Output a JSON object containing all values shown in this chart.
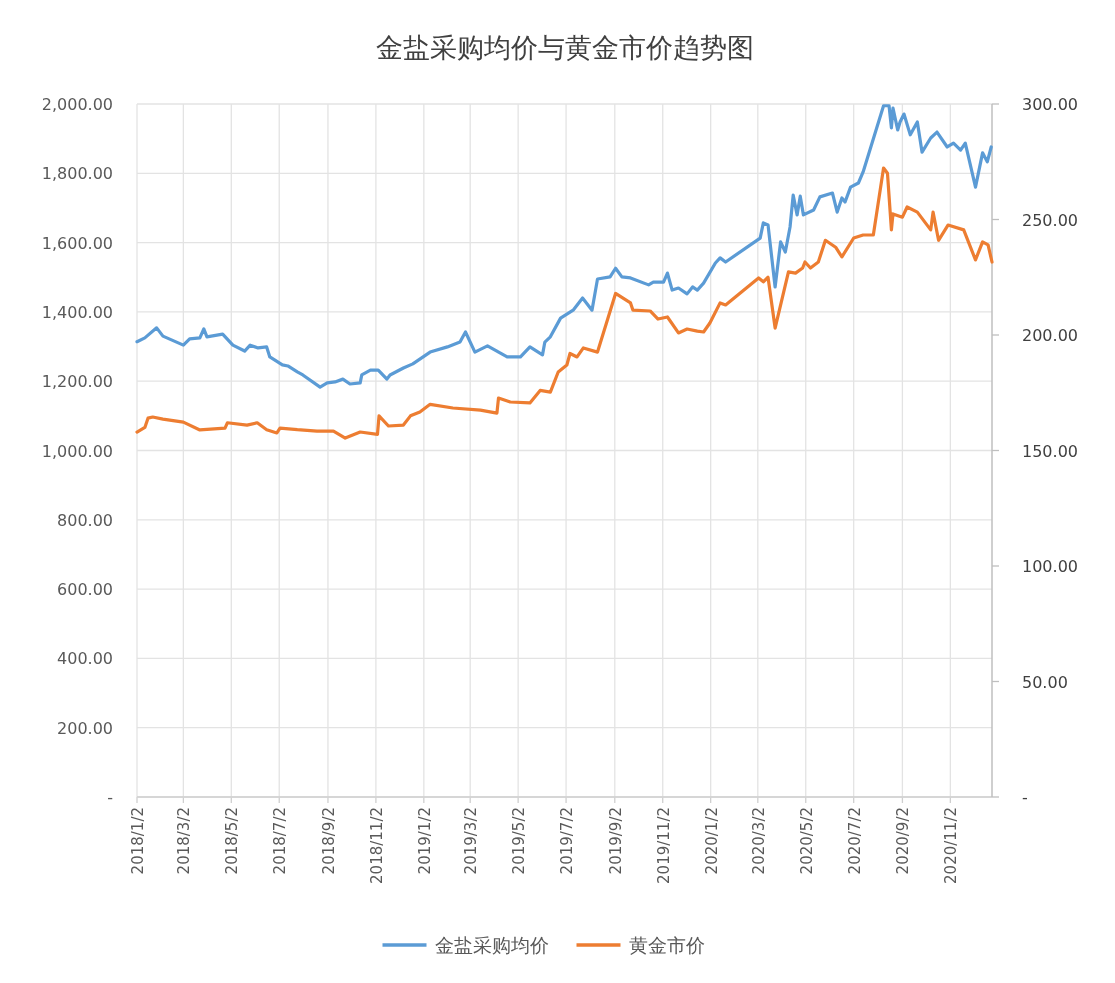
{
  "chart_data": {
    "type": "line",
    "title": "金盐采购均价与黄金市价趋势图",
    "xlim": [
      "2018-01-02",
      "2020-12-25"
    ],
    "xticks": [
      {
        "value": "2018-01-02",
        "label": "2018/1/2"
      },
      {
        "value": "2018-03-02",
        "label": "2018/3/2"
      },
      {
        "value": "2018-05-02",
        "label": "2018/5/2"
      },
      {
        "value": "2018-07-02",
        "label": "2018/7/2"
      },
      {
        "value": "2018-09-02",
        "label": "2018/9/2"
      },
      {
        "value": "2018-11-02",
        "label": "2018/11/2"
      },
      {
        "value": "2019-01-02",
        "label": "2019/1/2"
      },
      {
        "value": "2019-03-02",
        "label": "2019/3/2"
      },
      {
        "value": "2019-05-02",
        "label": "2019/5/2"
      },
      {
        "value": "2019-07-02",
        "label": "2019/7/2"
      },
      {
        "value": "2019-09-02",
        "label": "2019/9/2"
      },
      {
        "value": "2019-11-02",
        "label": "2019/11/2"
      },
      {
        "value": "2020-01-02",
        "label": "2020/1/2"
      },
      {
        "value": "2020-03-02",
        "label": "2020/3/2"
      },
      {
        "value": "2020-05-02",
        "label": "2020/5/2"
      },
      {
        "value": "2020-07-02",
        "label": "2020/7/2"
      },
      {
        "value": "2020-09-02",
        "label": "2020/9/2"
      },
      {
        "value": "2020-11-02",
        "label": "2020/11/2"
      }
    ],
    "ylim": [
      0,
      2000
    ],
    "yticks": [
      {
        "value": 0,
        "label": "-"
      },
      {
        "value": 200,
        "label": "200.00"
      },
      {
        "value": 400,
        "label": "400.00"
      },
      {
        "value": 600,
        "label": "600.00"
      },
      {
        "value": 800,
        "label": "800.00"
      },
      {
        "value": 1000,
        "label": "1,000.00"
      },
      {
        "value": 1200,
        "label": "1,200.00"
      },
      {
        "value": 1400,
        "label": "1,400.00"
      },
      {
        "value": 1600,
        "label": "1,600.00"
      },
      {
        "value": 1800,
        "label": "1,800.00"
      },
      {
        "value": 2000,
        "label": "2,000.00"
      }
    ],
    "y2lim": [
      0,
      300
    ],
    "y2ticks": [
      {
        "value": 0,
        "label": "-"
      },
      {
        "value": 50,
        "label": "50.00"
      },
      {
        "value": 100,
        "label": "100.00"
      },
      {
        "value": 150,
        "label": "150.00"
      },
      {
        "value": 200,
        "label": "200.00"
      },
      {
        "value": 250,
        "label": "250.00"
      },
      {
        "value": 300,
        "label": "300.00"
      }
    ],
    "grid": true,
    "legend": "bottom",
    "series": [
      {
        "name": "金盐采购均价",
        "color": "#5b9bd5",
        "axis": "y",
        "x": [
          "2018-01-02",
          "2018-01-12",
          "2018-01-27",
          "2018-02-04",
          "2018-03-02",
          "2018-03-10",
          "2018-03-23",
          "2018-03-28",
          "2018-04-01",
          "2018-04-21",
          "2018-05-04",
          "2018-05-19",
          "2018-05-26",
          "2018-06-05",
          "2018-06-16",
          "2018-06-20",
          "2018-07-06",
          "2018-07-13",
          "2018-07-25",
          "2018-08-01",
          "2018-08-23",
          "2018-09-01",
          "2018-09-11",
          "2018-09-21",
          "2018-09-30",
          "2018-10-13",
          "2018-10-15",
          "2018-10-26",
          "2018-11-05",
          "2018-11-16",
          "2018-11-20",
          "2018-12-07",
          "2018-12-19",
          "2019-01-10",
          "2019-02-01",
          "2019-02-17",
          "2019-02-24",
          "2019-03-08",
          "2019-03-24",
          "2019-04-18",
          "2019-05-05",
          "2019-05-17",
          "2019-06-02",
          "2019-06-05",
          "2019-06-12",
          "2019-06-25",
          "2019-07-11",
          "2019-07-23",
          "2019-08-04",
          "2019-08-11",
          "2019-08-27",
          "2019-09-03",
          "2019-09-11",
          "2019-09-22",
          "2019-10-15",
          "2019-10-21",
          "2019-11-03",
          "2019-11-08",
          "2019-11-14",
          "2019-11-22",
          "2019-12-03",
          "2019-12-10",
          "2019-12-16",
          "2019-12-24",
          "2020-01-08",
          "2020-01-14",
          "2020-01-21",
          "2020-03-05",
          "2020-03-09",
          "2020-03-15",
          "2020-03-24",
          "2020-03-31",
          "2020-04-06",
          "2020-04-12",
          "2020-04-16",
          "2020-04-21",
          "2020-04-25",
          "2020-04-29",
          "2020-05-12",
          "2020-05-20",
          "2020-06-05",
          "2020-06-11",
          "2020-06-17",
          "2020-06-21",
          "2020-06-28",
          "2020-07-08",
          "2020-07-14",
          "2020-08-09",
          "2020-08-16",
          "2020-08-19",
          "2020-08-21",
          "2020-08-27",
          "2020-08-30",
          "2020-09-04",
          "2020-09-12",
          "2020-09-21",
          "2020-09-27",
          "2020-10-08",
          "2020-10-16",
          "2020-10-29",
          "2020-11-06",
          "2020-11-15",
          "2020-11-21",
          "2020-12-04",
          "2020-12-13",
          "2020-12-19",
          "2020-12-24"
        ],
        "values": [
          1314,
          1325,
          1354,
          1330,
          1304,
          1322,
          1325,
          1351,
          1328,
          1336,
          1304,
          1287,
          1304,
          1296,
          1299,
          1270,
          1247,
          1244,
          1227,
          1218,
          1183,
          1195,
          1198,
          1206,
          1192,
          1195,
          1218,
          1232,
          1232,
          1206,
          1218,
          1238,
          1250,
          1284,
          1299,
          1313,
          1342,
          1284,
          1302,
          1270,
          1270,
          1299,
          1276,
          1313,
          1328,
          1382,
          1405,
          1440,
          1405,
          1495,
          1501,
          1526,
          1501,
          1498,
          1478,
          1486,
          1486,
          1512,
          1463,
          1469,
          1452,
          1472,
          1463,
          1483,
          1541,
          1556,
          1544,
          1613,
          1657,
          1651,
          1472,
          1602,
          1573,
          1645,
          1737,
          1680,
          1734,
          1680,
          1694,
          1732,
          1743,
          1688,
          1729,
          1717,
          1760,
          1772,
          1804,
          1995,
          1995,
          1931,
          1988,
          1925,
          1948,
          1971,
          1911,
          1948,
          1861,
          1902,
          1919,
          1876,
          1887,
          1867,
          1887,
          1760,
          1859,
          1833,
          1876
        ]
      },
      {
        "name": "黄金市价",
        "color": "#ed7d31",
        "axis": "y2",
        "x": [
          "2018-01-02",
          "2018-01-12",
          "2018-01-16",
          "2018-01-22",
          "2018-02-04",
          "2018-03-02",
          "2018-03-23",
          "2018-04-24",
          "2018-04-27",
          "2018-05-22",
          "2018-06-04",
          "2018-06-16",
          "2018-06-29",
          "2018-07-03",
          "2018-07-25",
          "2018-08-19",
          "2018-09-09",
          "2018-09-24",
          "2018-10-13",
          "2018-11-04",
          "2018-11-06",
          "2018-11-18",
          "2018-12-07",
          "2018-12-16",
          "2018-12-28",
          "2019-01-10",
          "2019-02-08",
          "2019-03-15",
          "2019-04-05",
          "2019-04-07",
          "2019-04-22",
          "2019-05-17",
          "2019-05-30",
          "2019-06-12",
          "2019-06-22",
          "2019-07-03",
          "2019-07-07",
          "2019-07-16",
          "2019-07-24",
          "2019-08-11",
          "2019-09-03",
          "2019-09-22",
          "2019-09-25",
          "2019-10-17",
          "2019-10-27",
          "2019-11-08",
          "2019-11-22",
          "2019-12-03",
          "2019-12-16",
          "2019-12-24",
          "2020-01-01",
          "2020-01-14",
          "2020-01-21",
          "2020-03-03",
          "2020-03-09",
          "2020-03-15",
          "2020-03-24",
          "2020-04-10",
          "2020-04-19",
          "2020-04-28",
          "2020-05-01",
          "2020-05-08",
          "2020-05-18",
          "2020-05-27",
          "2020-06-09",
          "2020-06-17",
          "2020-07-02",
          "2020-07-14",
          "2020-07-27",
          "2020-08-09",
          "2020-08-14",
          "2020-08-19",
          "2020-08-21",
          "2020-09-02",
          "2020-09-08",
          "2020-09-21",
          "2020-10-08",
          "2020-10-11",
          "2020-10-18",
          "2020-10-30",
          "2020-11-19",
          "2020-12-04",
          "2020-12-13",
          "2020-12-20",
          "2020-12-25"
        ],
        "values": [
          158,
          160,
          164,
          164.5,
          163.6,
          162.3,
          158.9,
          159.7,
          162,
          161,
          162,
          159,
          157.6,
          159.7,
          159,
          158.4,
          158.4,
          155.4,
          158,
          157,
          165,
          160.6,
          161,
          165,
          166.7,
          170,
          168.4,
          167.5,
          166.2,
          172.7,
          171,
          170.6,
          176,
          175.3,
          184,
          187,
          192,
          190.5,
          194.4,
          192.6,
          218,
          213.9,
          210.8,
          210.4,
          206.9,
          207.8,
          200.9,
          202.6,
          201.7,
          201.3,
          205.2,
          213.9,
          213,
          224.7,
          223,
          225,
          203,
          227.3,
          226.8,
          229,
          231.6,
          229,
          231.6,
          241,
          238,
          233.8,
          242,
          243.3,
          243.3,
          272.3,
          270,
          245.5,
          252.4,
          251,
          255.4,
          253.2,
          245.5,
          253.2,
          241,
          247.6,
          245.5,
          232.5,
          240.3,
          239,
          231.6
        ]
      }
    ]
  }
}
